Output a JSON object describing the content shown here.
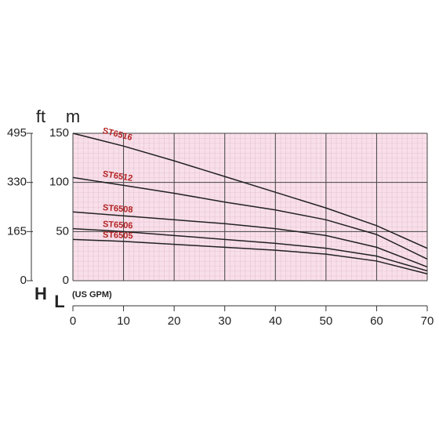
{
  "chart_data": {
    "type": "line",
    "x": [
      0,
      10,
      20,
      30,
      40,
      50,
      60,
      70
    ],
    "xlim": [
      0,
      70
    ],
    "xticks": [
      0,
      10,
      20,
      30,
      40,
      50,
      60,
      70
    ],
    "ylim": [
      0,
      150
    ],
    "yticks": [
      0,
      50,
      100,
      150
    ],
    "y2lim": [
      0,
      495
    ],
    "y2ticks": [
      0,
      165,
      330,
      495
    ],
    "y_unit": "m",
    "y2_unit": "ft",
    "y_axis_label": "H",
    "x_axis_label": "L",
    "x_unit": "(US GPM)",
    "grid": true,
    "series": [
      {
        "name": "ST6516",
        "color": "#222222",
        "values": [
          150,
          137,
          122,
          106,
          90,
          74,
          56,
          33
        ]
      },
      {
        "name": "ST6512",
        "color": "#222222",
        "values": [
          105,
          97,
          89,
          80,
          72,
          62,
          47,
          22
        ]
      },
      {
        "name": "ST6508",
        "color": "#222222",
        "values": [
          70,
          66,
          62,
          58,
          53,
          46,
          34,
          14
        ]
      },
      {
        "name": "ST6506",
        "color": "#222222",
        "values": [
          53,
          50,
          46,
          42,
          38,
          33,
          25,
          10
        ]
      },
      {
        "name": "ST6505",
        "color": "#222222",
        "values": [
          42,
          40,
          37,
          34,
          31,
          27,
          20,
          7
        ]
      }
    ]
  }
}
